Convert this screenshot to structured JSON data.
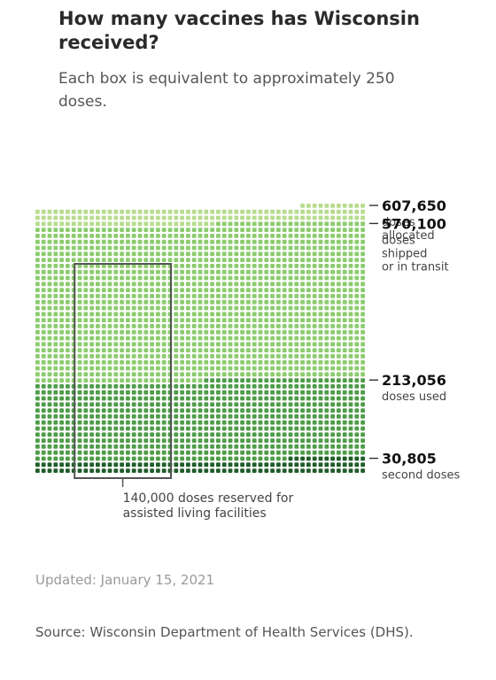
{
  "title": "How many vaccines has Wisconsin received?",
  "subtitle": "Each box is equivalent to approximately 250 doses.",
  "updated": "Updated: January 15, 2021",
  "source": "Source: Wisconsin Department of Health Services (DHS).",
  "colors": {
    "allocated": "#b7dc8e",
    "shipped": "#8ccc6e",
    "used": "#4e9c48",
    "second": "#1f5d2a",
    "frame": "#555555"
  },
  "chart_data": {
    "type": "waffle",
    "unit_label": "Each box is equivalent to approximately 250 doses.",
    "doses_per_box": 250,
    "series": [
      {
        "name": "doses allocated",
        "value": 607650,
        "value_label": "607,650",
        "label_lines": [
          "doses",
          "allocated"
        ]
      },
      {
        "name": "doses shipped or in transit",
        "value": 570100,
        "value_label": "570,100",
        "label_lines": [
          "doses",
          "shipped",
          "or in transit"
        ]
      },
      {
        "name": "doses used",
        "value": 213056,
        "value_label": "213,056",
        "label_lines": [
          "doses used"
        ]
      },
      {
        "name": "second doses",
        "value": 30805,
        "value_label": "30,805",
        "label_lines": [
          "second doses"
        ]
      }
    ],
    "annotation": {
      "value": 140000,
      "text_lines": [
        "140,000 doses reserved for",
        "assisted living facilities"
      ]
    }
  }
}
